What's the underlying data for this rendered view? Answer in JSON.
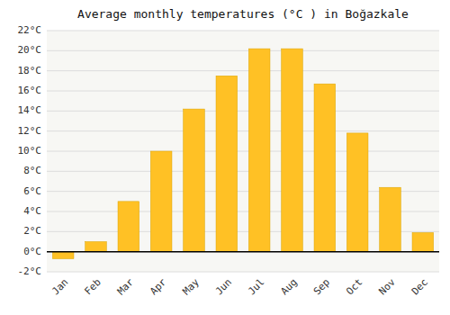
{
  "chart_data": {
    "type": "bar",
    "title": "Average monthly temperatures (°C ) in Boğazkale",
    "categories": [
      "Jan",
      "Feb",
      "Mar",
      "Apr",
      "May",
      "Jun",
      "Jul",
      "Aug",
      "Sep",
      "Oct",
      "Nov",
      "Dec"
    ],
    "values": [
      -0.7,
      1.0,
      5.0,
      10.0,
      14.2,
      17.5,
      20.2,
      20.2,
      16.7,
      11.8,
      6.4,
      1.9
    ],
    "color": "#FFC125",
    "ylim": [
      -2,
      22
    ],
    "yticks": [
      {
        "value": -2,
        "label": "-2°C"
      },
      {
        "value": 0,
        "label": "0°C"
      },
      {
        "value": 2,
        "label": "2°C"
      },
      {
        "value": 4,
        "label": "4°C"
      },
      {
        "value": 6,
        "label": "6°C"
      },
      {
        "value": 8,
        "label": "8°C"
      },
      {
        "value": 10,
        "label": "10°C"
      },
      {
        "value": 12,
        "label": "12°C"
      },
      {
        "value": 14,
        "label": "14°C"
      },
      {
        "value": 16,
        "label": "16°C"
      },
      {
        "value": 18,
        "label": "18°C"
      },
      {
        "value": 20,
        "label": "20°C"
      },
      {
        "value": 22,
        "label": "22°C"
      }
    ],
    "grid": true
  }
}
